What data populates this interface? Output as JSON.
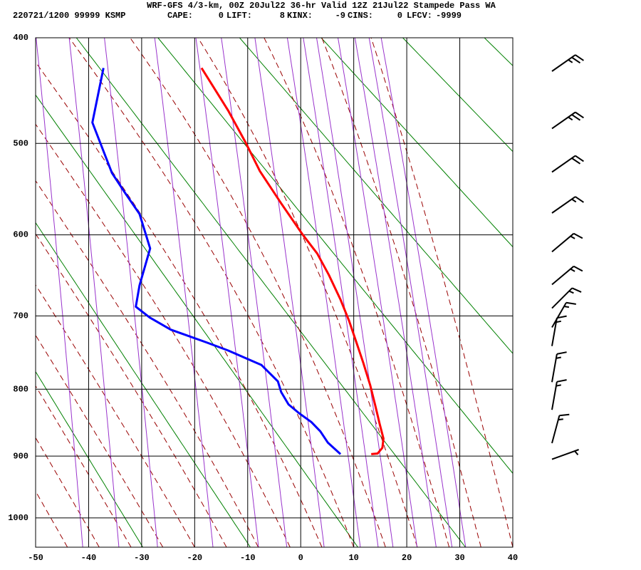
{
  "chart_data": {
    "type": "line",
    "title": "WRF-GFS 4/3-km, 00Z 20Jul22 36-hr Valid 12Z 21Jul22 Stampede Pass WA",
    "station": "220721/1200 99999  KSMP",
    "indices": [
      {
        "name": "CAPE:",
        "value": 0
      },
      {
        "name": "LIFT:",
        "value": 8
      },
      {
        "name": "KINX:",
        "value": -9
      },
      {
        "name": "CINS:",
        "value": 0
      },
      {
        "name": "LFCV:",
        "value": -9999
      }
    ],
    "xlim": [
      -50,
      40
    ],
    "xticks": [
      -50,
      -40,
      -30,
      -20,
      -10,
      0,
      10,
      20,
      30,
      40
    ],
    "ylim": [
      400,
      1050
    ],
    "yticks": [
      400,
      500,
      600,
      700,
      800,
      900,
      1000
    ],
    "grid": true,
    "series": [
      {
        "color": "#ff0000",
        "x": [
          -18.7,
          -13.7,
          -10.4,
          -7.7,
          -3.7,
          0.4,
          3.1,
          5.3,
          7.5,
          9.1,
          10.5,
          11.8,
          13.1,
          14.1,
          14.9,
          15.6,
          15.4,
          14.5,
          13.3
        ],
        "values": [
          427,
          467,
          499,
          529,
          564,
          600,
          622,
          648,
          679,
          706,
          735,
          763,
          794,
          825,
          851,
          873,
          887,
          896,
          897
        ]
      },
      {
        "color": "#0000ff",
        "x": [
          -37.2,
          -39.3,
          -35.6,
          -33.2,
          -30.4,
          -28.4,
          -30.4,
          -31.1,
          -28.5,
          -24.5,
          -17.8,
          -13.7,
          -7.4,
          -4.3,
          -3.7,
          -2.3,
          -0.3,
          2.0,
          3.7,
          5.1,
          7.5
        ],
        "values": [
          427,
          479,
          531,
          552,
          576,
          616,
          661,
          688,
          702,
          718,
          735,
          746,
          766,
          789,
          804,
          822,
          835,
          848,
          862,
          879,
          897
        ]
      }
    ],
    "wind_barbs": {
      "pressure": [
        430,
        485,
        530,
        575,
        620,
        660,
        690,
        715,
        740,
        790,
        830,
        880,
        905
      ],
      "direction": [
        55,
        55,
        55,
        55,
        50,
        50,
        45,
        30,
        10,
        10,
        10,
        15,
        70
      ],
      "speed": [
        25,
        25,
        20,
        15,
        15,
        15,
        15,
        15,
        15,
        15,
        15,
        15,
        5
      ]
    }
  }
}
